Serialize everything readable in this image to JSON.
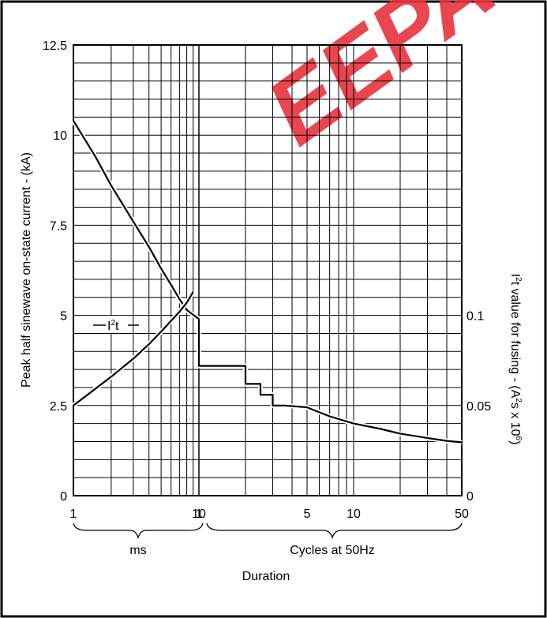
{
  "chart_data": {
    "type": "line",
    "title": "",
    "left_axis": {
      "label": "Peak half sinewave on-state current - (kA)",
      "range": [
        0,
        12.5
      ],
      "ticks": [
        "0",
        "2.5",
        "5",
        "7.5",
        "10",
        "12.5"
      ],
      "tick_values": [
        0,
        2.5,
        5,
        7.5,
        10,
        12.5
      ]
    },
    "right_axis": {
      "label_pre": "I",
      "label_sup1": "2",
      "label_mid": "t value for fusing - (A",
      "label_sup2": "2",
      "label_mid2": "s x 10",
      "label_sup3": "6",
      "label_post": ")",
      "range": [
        0,
        0.25
      ],
      "ticks": [
        "0",
        "0.05",
        "0.1"
      ],
      "tick_values": [
        0,
        0.05,
        0.1
      ]
    },
    "x_axis": {
      "label": "Duration",
      "scale": "log",
      "ms_range": [
        1,
        10
      ],
      "cycles_range": [
        1,
        50
      ],
      "ms_tick_labels": [
        "1",
        "10"
      ],
      "cycles_tick_labels": [
        "1",
        "5",
        "10",
        "50"
      ],
      "ms_group_label": "ms",
      "cycles_group_label": "Cycles at 50Hz"
    },
    "grid": true,
    "series": [
      {
        "name": "",
        "axis": "left",
        "segment": "ms",
        "x": [
          1,
          1.5,
          2,
          3,
          4,
          5,
          6,
          7,
          8,
          10
        ],
        "y": [
          10.4,
          9.4,
          8.6,
          7.6,
          6.9,
          6.3,
          5.85,
          5.45,
          5.15,
          4.9
        ]
      },
      {
        "name": "",
        "axis": "left",
        "segment": "cycles",
        "step": true,
        "x": [
          1,
          1,
          2,
          2,
          2.5,
          2.5,
          3,
          3,
          3.6,
          3.6,
          5,
          7,
          10,
          15,
          20,
          30,
          40,
          50
        ],
        "y": [
          4.9,
          3.6,
          3.6,
          3.1,
          3.1,
          2.8,
          2.8,
          2.5,
          2.5,
          2.5,
          2.45,
          2.2,
          2.0,
          1.85,
          1.72,
          1.6,
          1.52,
          1.48
        ]
      },
      {
        "name": "I²t",
        "label_pre": "I",
        "label_sup": "2",
        "label_post": "t",
        "axis": "right",
        "segment": "ms",
        "x": [
          1,
          2,
          3,
          4,
          5,
          6,
          7,
          8,
          9
        ],
        "y": [
          0.05,
          0.066,
          0.076,
          0.084,
          0.091,
          0.097,
          0.102,
          0.107,
          0.113
        ]
      }
    ]
  },
  "watermark": {
    "text": "EEPA",
    "color": "#e8323c"
  }
}
